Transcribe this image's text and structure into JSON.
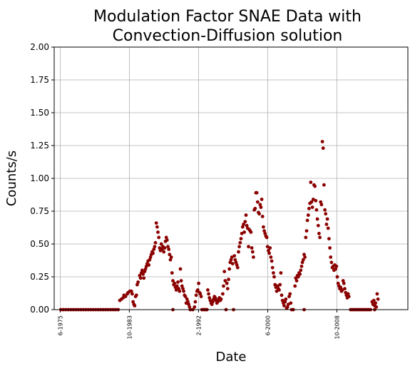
{
  "chart_data": {
    "type": "scatter",
    "title_line1": "Modulation Factor SNAE Data with",
    "title_line2": "Convection-Diffusion solution",
    "xlabel": "Date",
    "ylabel": "Counts/s",
    "ylim": [
      0,
      2.0
    ],
    "yticks": [
      "0.00",
      "0.25",
      "0.50",
      "0.75",
      "1.00",
      "1.25",
      "1.50",
      "1.75",
      "2.00"
    ],
    "xlim": [
      1974.7,
      2017.3
    ],
    "xtick_labels": [
      "6-1975",
      "10-1983",
      "2-1992",
      "6-2000",
      "10-2008"
    ],
    "xtick_values": [
      1975.42,
      1983.75,
      1992.08,
      2000.42,
      2008.75
    ],
    "grid": true,
    "marker_color": "#8b0000",
    "series": [
      {
        "values": [
          [
            1975.5,
            0
          ],
          [
            1975.8,
            0
          ],
          [
            1976.1,
            0
          ],
          [
            1976.4,
            0
          ],
          [
            1976.7,
            0
          ],
          [
            1977.0,
            0
          ],
          [
            1977.3,
            0
          ],
          [
            1977.6,
            0
          ],
          [
            1977.9,
            0
          ],
          [
            1978.2,
            0
          ],
          [
            1978.5,
            0
          ],
          [
            1978.8,
            0
          ],
          [
            1979.1,
            0
          ],
          [
            1979.4,
            0
          ],
          [
            1979.7,
            0
          ],
          [
            1980.0,
            0
          ],
          [
            1980.3,
            0
          ],
          [
            1980.6,
            0
          ],
          [
            1980.9,
            0
          ],
          [
            1981.2,
            0
          ],
          [
            1981.5,
            0
          ],
          [
            1981.8,
            0
          ],
          [
            1982.1,
            0
          ],
          [
            1982.4,
            0
          ],
          [
            1982.6,
            0.07
          ],
          [
            1982.8,
            0.08
          ],
          [
            1983.0,
            0.09
          ],
          [
            1983.1,
            0.11
          ],
          [
            1983.3,
            0.1
          ],
          [
            1983.5,
            0.12
          ],
          [
            1983.6,
            0.13
          ],
          [
            1983.8,
            0.14
          ],
          [
            1984.0,
            0.14
          ],
          [
            1984.1,
            0.12
          ],
          [
            1984.2,
            0.06
          ],
          [
            1984.3,
            0.04
          ],
          [
            1984.4,
            0.03
          ],
          [
            1984.5,
            0.1
          ],
          [
            1984.6,
            0.11
          ],
          [
            1984.7,
            0.19
          ],
          [
            1984.8,
            0.21
          ],
          [
            1985.0,
            0.26
          ],
          [
            1985.1,
            0.24
          ],
          [
            1985.2,
            0.28
          ],
          [
            1985.3,
            0.3
          ],
          [
            1985.4,
            0.27
          ],
          [
            1985.5,
            0.24
          ],
          [
            1985.6,
            0.29
          ],
          [
            1985.7,
            0.31
          ],
          [
            1985.8,
            0.33
          ],
          [
            1985.9,
            0.35
          ],
          [
            1986.0,
            0.37
          ],
          [
            1986.1,
            0.34
          ],
          [
            1986.2,
            0.38
          ],
          [
            1986.3,
            0.4
          ],
          [
            1986.4,
            0.42
          ],
          [
            1986.5,
            0.44
          ],
          [
            1986.6,
            0.43
          ],
          [
            1986.7,
            0.46
          ],
          [
            1986.8,
            0.48
          ],
          [
            1986.9,
            0.51
          ],
          [
            1987.0,
            0.66
          ],
          [
            1987.1,
            0.63
          ],
          [
            1987.2,
            0.59
          ],
          [
            1987.3,
            0.55
          ],
          [
            1987.4,
            0.47
          ],
          [
            1987.5,
            0.45
          ],
          [
            1987.6,
            0.5
          ],
          [
            1987.7,
            0.46
          ],
          [
            1987.8,
            0.48
          ],
          [
            1987.9,
            0.44
          ],
          [
            1988.0,
            0.47
          ],
          [
            1988.1,
            0.52
          ],
          [
            1988.2,
            0.55
          ],
          [
            1988.3,
            0.53
          ],
          [
            1988.4,
            0.48
          ],
          [
            1988.5,
            0.46
          ],
          [
            1988.6,
            0.42
          ],
          [
            1988.7,
            0.38
          ],
          [
            1988.8,
            0.4
          ],
          [
            1988.9,
            0.28
          ],
          [
            1989.0,
            0.22
          ],
          [
            1989.1,
            0.19
          ],
          [
            1989.2,
            0.2
          ],
          [
            1989.3,
            0.17
          ],
          [
            1989.4,
            0.15
          ],
          [
            1989.5,
            0.18
          ],
          [
            1989.6,
            0.21
          ],
          [
            1989.7,
            0.16
          ],
          [
            1989.8,
            0.14
          ],
          [
            1989.9,
            0.31
          ],
          [
            1990.0,
            0.22
          ],
          [
            1990.1,
            0.18
          ],
          [
            1990.2,
            0.16
          ],
          [
            1990.3,
            0.14
          ],
          [
            1990.4,
            0.11
          ],
          [
            1990.5,
            0.1
          ],
          [
            1990.6,
            0.05
          ],
          [
            1990.7,
            0.08
          ],
          [
            1990.8,
            0.06
          ],
          [
            1990.9,
            0.04
          ],
          [
            1991.0,
            0.02
          ],
          [
            1989.0,
            0
          ],
          [
            1991.1,
            0
          ],
          [
            1991.4,
            0
          ],
          [
            1991.6,
            0.02
          ],
          [
            1991.7,
            0.06
          ],
          [
            1991.8,
            0.11
          ],
          [
            1991.9,
            0.14
          ],
          [
            1992.0,
            0.15
          ],
          [
            1992.1,
            0.2
          ],
          [
            1992.2,
            0.13
          ],
          [
            1992.3,
            0.12
          ],
          [
            1992.4,
            0.1
          ],
          [
            1992.5,
            0
          ],
          [
            1992.7,
            0
          ],
          [
            1992.9,
            0
          ],
          [
            1993.1,
            0
          ],
          [
            1993.2,
            0.15
          ],
          [
            1993.3,
            0.12
          ],
          [
            1993.4,
            0.09
          ],
          [
            1993.5,
            0.07
          ],
          [
            1993.6,
            0.05
          ],
          [
            1993.7,
            0.04
          ],
          [
            1993.8,
            0.06
          ],
          [
            1993.9,
            0.08
          ],
          [
            1994.0,
            0.1
          ],
          [
            1994.1,
            0.09
          ],
          [
            1994.2,
            0.07
          ],
          [
            1994.3,
            0.05
          ],
          [
            1994.4,
            0.06
          ],
          [
            1994.5,
            0.08
          ],
          [
            1994.6,
            0.09
          ],
          [
            1994.7,
            0.07
          ],
          [
            1994.8,
            0.08
          ],
          [
            1995.0,
            0.12
          ],
          [
            1995.1,
            0.18
          ],
          [
            1995.2,
            0.29
          ],
          [
            1995.3,
            0.22
          ],
          [
            1995.4,
            0
          ],
          [
            1995.5,
            0.2
          ],
          [
            1995.6,
            0.16
          ],
          [
            1995.7,
            0.23
          ],
          [
            1995.8,
            0.31
          ],
          [
            1995.9,
            0.36
          ],
          [
            1996.0,
            0.38
          ],
          [
            1996.1,
            0.4
          ],
          [
            1996.2,
            0.35
          ],
          [
            1996.3,
            0
          ],
          [
            1996.4,
            0.41
          ],
          [
            1996.5,
            0.38
          ],
          [
            1996.6,
            0.36
          ],
          [
            1996.7,
            0.34
          ],
          [
            1996.8,
            0.32
          ],
          [
            1996.9,
            0.44
          ],
          [
            1997.0,
            0.48
          ],
          [
            1997.1,
            0.51
          ],
          [
            1997.2,
            0.54
          ],
          [
            1997.3,
            0.58
          ],
          [
            1997.4,
            0.63
          ],
          [
            1997.5,
            0.65
          ],
          [
            1997.6,
            0.59
          ],
          [
            1997.7,
            0.67
          ],
          [
            1997.8,
            0.72
          ],
          [
            1997.9,
            0.64
          ],
          [
            1998.0,
            0.62
          ],
          [
            1998.1,
            0.48
          ],
          [
            1998.2,
            0.61
          ],
          [
            1998.3,
            0.6
          ],
          [
            1998.4,
            0.59
          ],
          [
            1998.5,
            0.47
          ],
          [
            1998.6,
            0.44
          ],
          [
            1998.7,
            0.4
          ],
          [
            1998.8,
            0.76
          ],
          [
            1998.9,
            0.77
          ],
          [
            1999.0,
            0.89
          ],
          [
            1999.1,
            0.89
          ],
          [
            1999.2,
            0.82
          ],
          [
            1999.3,
            0.74
          ],
          [
            1999.4,
            0.73
          ],
          [
            1999.5,
            0.8
          ],
          [
            1999.6,
            0.78
          ],
          [
            1999.7,
            0.84
          ],
          [
            1999.8,
            0.71
          ],
          [
            1999.9,
            0.63
          ],
          [
            2000.0,
            0.6
          ],
          [
            2000.1,
            0.58
          ],
          [
            2000.2,
            0.56
          ],
          [
            2000.3,
            0.55
          ],
          [
            2000.4,
            0.48
          ],
          [
            2000.5,
            0.45
          ],
          [
            2000.6,
            0.43
          ],
          [
            2000.7,
            0.47
          ],
          [
            2000.8,
            0.4
          ],
          [
            2000.9,
            0.37
          ],
          [
            2001.0,
            0.32
          ],
          [
            2001.1,
            0.28
          ],
          [
            2001.2,
            0.25
          ],
          [
            2001.3,
            0.19
          ],
          [
            2001.4,
            0.17
          ],
          [
            2001.5,
            0.14
          ],
          [
            2001.6,
            0.18
          ],
          [
            2001.7,
            0.16
          ],
          [
            2001.8,
            0.15
          ],
          [
            2001.9,
            0.19
          ],
          [
            2002.0,
            0.28
          ],
          [
            2002.1,
            0.11
          ],
          [
            2002.2,
            0.07
          ],
          [
            2002.3,
            0.05
          ],
          [
            2002.4,
            0.03
          ],
          [
            2002.5,
            0.06
          ],
          [
            2002.6,
            0.08
          ],
          [
            2002.7,
            0.01
          ],
          [
            2002.8,
            0.02
          ],
          [
            2002.9,
            0.04
          ],
          [
            2003.0,
            0.1
          ],
          [
            2003.1,
            0.12
          ],
          [
            2003.2,
            0.05
          ],
          [
            2003.3,
            0
          ],
          [
            2003.5,
            0
          ],
          [
            2003.7,
            0.18
          ],
          [
            2003.8,
            0.24
          ],
          [
            2003.9,
            0.22
          ],
          [
            2004.0,
            0.26
          ],
          [
            2004.1,
            0.25
          ],
          [
            2004.2,
            0.28
          ],
          [
            2004.3,
            0.27
          ],
          [
            2004.4,
            0.3
          ],
          [
            2004.5,
            0.33
          ],
          [
            2004.6,
            0.36
          ],
          [
            2004.7,
            0.38
          ],
          [
            2004.8,
            0.42
          ],
          [
            2004.9,
            0.4
          ],
          [
            2004.8,
            0
          ],
          [
            2005.0,
            0.55
          ],
          [
            2005.1,
            0.6
          ],
          [
            2005.2,
            0.68
          ],
          [
            2005.3,
            0.72
          ],
          [
            2005.4,
            0.77
          ],
          [
            2005.5,
            0.81
          ],
          [
            2005.6,
            0.97
          ],
          [
            2005.7,
            0.82
          ],
          [
            2005.8,
            0.78
          ],
          [
            2005.9,
            0.84
          ],
          [
            2006.0,
            0.95
          ],
          [
            2006.1,
            0.94
          ],
          [
            2006.2,
            0.83
          ],
          [
            2006.3,
            0.76
          ],
          [
            2006.4,
            0.69
          ],
          [
            2006.5,
            0.64
          ],
          [
            2006.6,
            0.58
          ],
          [
            2006.7,
            0.55
          ],
          [
            2006.8,
            0.82
          ],
          [
            2006.9,
            0.8
          ],
          [
            2007.0,
            1.28
          ],
          [
            2007.1,
            1.23
          ],
          [
            2007.2,
            0.95
          ],
          [
            2007.3,
            0.76
          ],
          [
            2007.4,
            0.73
          ],
          [
            2007.5,
            0.65
          ],
          [
            2007.6,
            0.69
          ],
          [
            2007.7,
            0.62
          ],
          [
            2007.8,
            0.54
          ],
          [
            2007.9,
            0.47
          ],
          [
            2008.0,
            0.4
          ],
          [
            2008.1,
            0.36
          ],
          [
            2008.2,
            0.32
          ],
          [
            2008.3,
            0.33
          ],
          [
            2008.4,
            0.3
          ],
          [
            2008.5,
            0.34
          ],
          [
            2008.6,
            0.31
          ],
          [
            2008.7,
            0.33
          ],
          [
            2008.8,
            0.25
          ],
          [
            2008.9,
            0.2
          ],
          [
            2009.0,
            0.18
          ],
          [
            2009.1,
            0.16
          ],
          [
            2009.2,
            0.17
          ],
          [
            2009.3,
            0.14
          ],
          [
            2009.4,
            0.15
          ],
          [
            2009.5,
            0.22
          ],
          [
            2009.6,
            0.2
          ],
          [
            2009.7,
            0.16
          ],
          [
            2009.8,
            0.13
          ],
          [
            2009.9,
            0.11
          ],
          [
            2010.0,
            0.09
          ],
          [
            2010.1,
            0.12
          ],
          [
            2010.2,
            0.1
          ],
          [
            2010.4,
            0
          ],
          [
            2010.6,
            0
          ],
          [
            2010.8,
            0
          ],
          [
            2011.0,
            0
          ],
          [
            2011.2,
            0
          ],
          [
            2011.4,
            0
          ],
          [
            2011.6,
            0
          ],
          [
            2011.8,
            0
          ],
          [
            2012.0,
            0
          ],
          [
            2012.2,
            0
          ],
          [
            2012.4,
            0
          ],
          [
            2012.6,
            0
          ],
          [
            2012.8,
            0
          ],
          [
            2013.0,
            0.06
          ],
          [
            2013.1,
            0.04
          ],
          [
            2013.2,
            0.07
          ],
          [
            2013.3,
            0.03
          ],
          [
            2013.4,
            0.05
          ],
          [
            2013.5,
            0.02
          ],
          [
            2013.6,
            0.12
          ],
          [
            2013.7,
            0.08
          ],
          [
            2013.3,
            0
          ]
        ]
      }
    ]
  }
}
